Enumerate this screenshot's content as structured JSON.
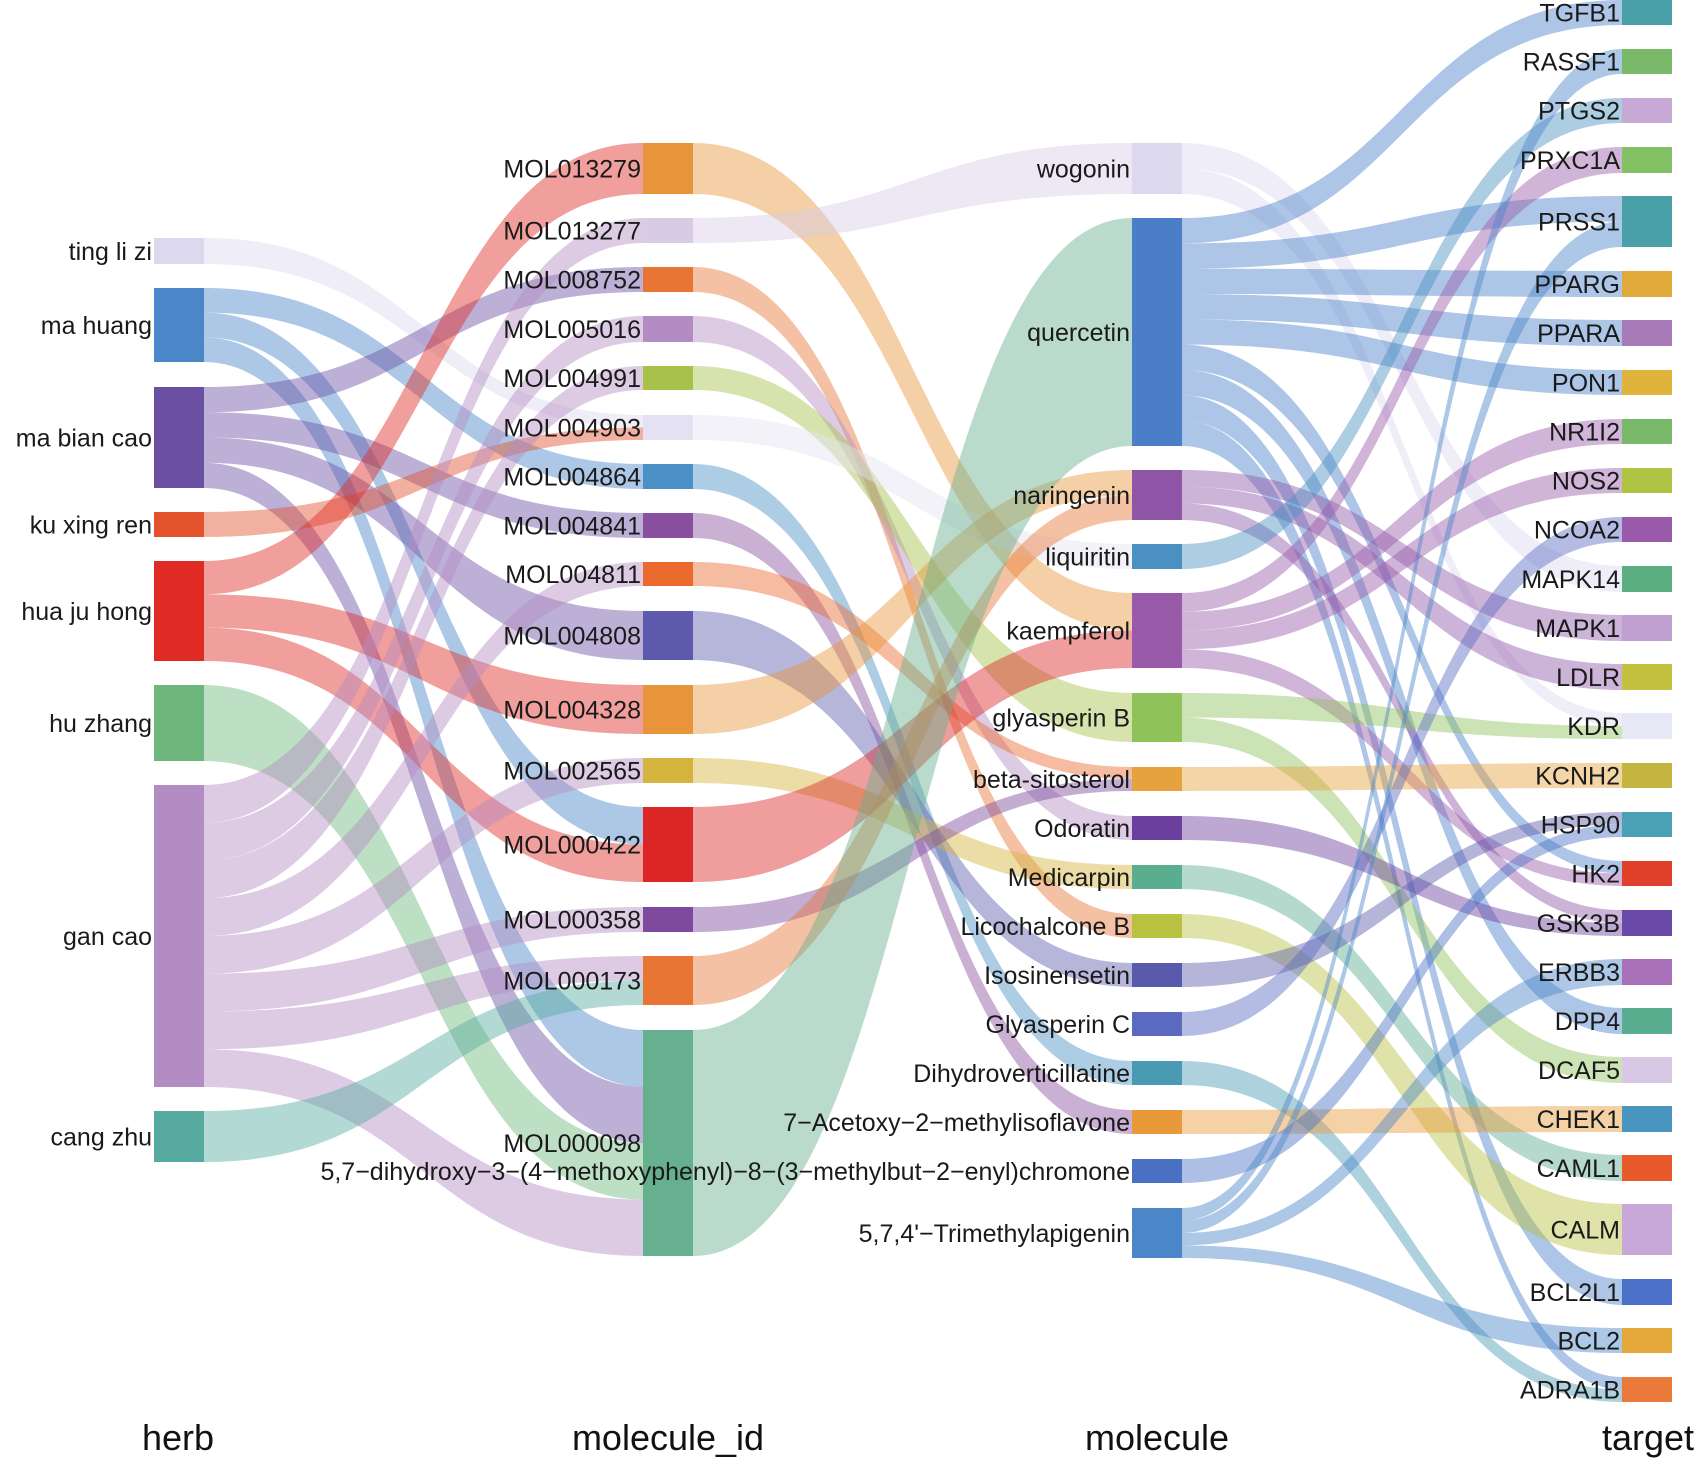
{
  "columns": [
    "herb",
    "molecule_id",
    "molecule",
    "target"
  ],
  "herbs": [
    {
      "label": "ting li zi",
      "color": "#dcd8ee"
    },
    {
      "label": "ma huang",
      "color": "#4a86c8"
    },
    {
      "label": "ma bian cao",
      "color": "#6a4fa3"
    },
    {
      "label": "ku xing ren",
      "color": "#e3522c"
    },
    {
      "label": "hua ju hong",
      "color": "#df2b23"
    },
    {
      "label": "hu zhang",
      "color": "#6db77d"
    },
    {
      "label": "gan cao",
      "color": "#b48cc4"
    },
    {
      "label": "cang zhu",
      "color": "#56aaa0"
    }
  ],
  "molecule_ids": [
    {
      "label": "MOL013279",
      "color": "#e8943a"
    },
    {
      "label": "MOL013277",
      "color": "#d8cbe6"
    },
    {
      "label": "MOL008752",
      "color": "#e97535"
    },
    {
      "label": "MOL005016",
      "color": "#b48cc4"
    },
    {
      "label": "MOL004991",
      "color": "#a6c24a"
    },
    {
      "label": "MOL004903",
      "color": "#e4e2f2"
    },
    {
      "label": "MOL004864",
      "color": "#4a90c6"
    },
    {
      "label": "MOL004841",
      "color": "#8a4f9e"
    },
    {
      "label": "MOL004811",
      "color": "#ea6a2e"
    },
    {
      "label": "MOL004808",
      "color": "#5d5aad"
    },
    {
      "label": "MOL004328",
      "color": "#e8943a"
    },
    {
      "label": "MOL002565",
      "color": "#d4b43c"
    },
    {
      "label": "MOL000422",
      "color": "#dc2626"
    },
    {
      "label": "MOL000358",
      "color": "#7d4a9e"
    },
    {
      "label": "MOL000173",
      "color": "#e97535"
    },
    {
      "label": "MOL000098",
      "color": "#66b08f"
    }
  ],
  "molecules": [
    {
      "label": "wogonin",
      "color": "#dcd8ee"
    },
    {
      "label": "quercetin",
      "color": "#4a7fc8"
    },
    {
      "label": "naringenin",
      "color": "#8f56a8"
    },
    {
      "label": "liquiritin",
      "color": "#4a90c0"
    },
    {
      "label": "kaempferol",
      "color": "#9a5aaa"
    },
    {
      "label": "glyasperin B",
      "color": "#8fc25a"
    },
    {
      "label": "beta-sitosterol",
      "color": "#e6a23c"
    },
    {
      "label": "Odoratin",
      "color": "#6a3f9e"
    },
    {
      "label": "Medicarpin",
      "color": "#5aae90"
    },
    {
      "label": "Licochalcone B",
      "color": "#b8c140"
    },
    {
      "label": "Isosinensetin",
      "color": "#5a5aad"
    },
    {
      "label": "Glyasperin C",
      "color": "#5a6ac0"
    },
    {
      "label": "Dihydroverticillatine",
      "color": "#4a9ab4"
    },
    {
      "label": "7−Acetoxy−2−methylisoflavone",
      "color": "#e89a3a"
    },
    {
      "label": "5,7−dihydroxy−3−(4−methoxyphenyl)−8−(3−methylbut−2−enyl)chromone",
      "color": "#4a70c4"
    },
    {
      "label": "5,7,4'−Trimethylapigenin",
      "color": "#4a86c8"
    }
  ],
  "targets": [
    {
      "label": "TGFB1",
      "color": "#4aa0a8"
    },
    {
      "label": "RASSF1",
      "color": "#7ab86a"
    },
    {
      "label": "PTGS2",
      "color": "#c8a8d4"
    },
    {
      "label": "PRXC1A",
      "color": "#84c064"
    },
    {
      "label": "PRSS1",
      "color": "#4aa0a8"
    },
    {
      "label": "PPARG",
      "color": "#e0aa3a"
    },
    {
      "label": "PPARA",
      "color": "#a87ab8"
    },
    {
      "label": "PON1",
      "color": "#e0b43a"
    },
    {
      "label": "NR1I2",
      "color": "#7ab86a"
    },
    {
      "label": "NOS2",
      "color": "#b0c444"
    },
    {
      "label": "NCOA2",
      "color": "#9a5aaa"
    },
    {
      "label": "MAPK14",
      "color": "#5aae80"
    },
    {
      "label": "MAPK1",
      "color": "#c0a0d0"
    },
    {
      "label": "LDLR",
      "color": "#c4c040"
    },
    {
      "label": "KDR",
      "color": "#e6e8f6"
    },
    {
      "label": "KCNH2",
      "color": "#c4b440"
    },
    {
      "label": "HSP90",
      "color": "#4aa0b4"
    },
    {
      "label": "HK2",
      "color": "#e0402a"
    },
    {
      "label": "GSK3B",
      "color": "#6a4aa8"
    },
    {
      "label": "ERBB3",
      "color": "#a870b8"
    },
    {
      "label": "DPP4",
      "color": "#5aae90"
    },
    {
      "label": "DCAF5",
      "color": "#d8c8e6"
    },
    {
      "label": "CHEK1",
      "color": "#4a96c0"
    },
    {
      "label": "CAML1",
      "color": "#e85a2a"
    },
    {
      "label": "CALM",
      "color": "#c8a8d8"
    },
    {
      "label": "BCL2L1",
      "color": "#4a70c8"
    },
    {
      "label": "BCL2",
      "color": "#e4a83a"
    },
    {
      "label": "ADRA1B",
      "color": "#ea7a3a"
    }
  ]
}
